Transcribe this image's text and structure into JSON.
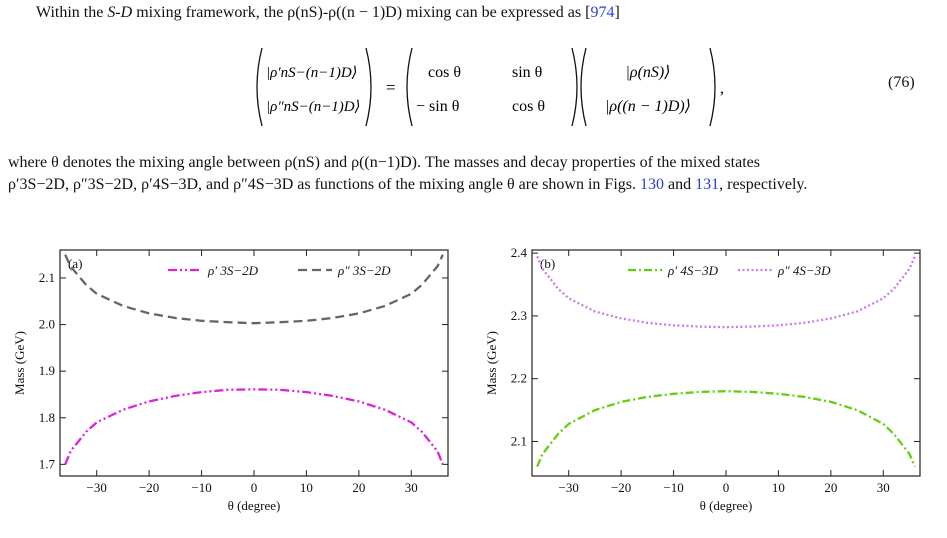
{
  "text": {
    "p1_prefix": "Within the ",
    "p1_sd": "S-D",
    "p1_mid": " mixing framework, the ρ(nS)-ρ((n − 1)D) mixing can be expressed as [",
    "p1_ref": "974",
    "p1_suffix": "]",
    "eq_number": "(76)",
    "p2_a": "where θ denotes the mixing angle between ρ(nS) and ρ((n−1)D). The masses and decay properties of the mixed states",
    "p2_b_pre": "ρ′3S−2D, ρ″3S−2D, ρ′4S−3D, and ρ″4S−3D as functions of the mixing angle θ are shown in Figs. ",
    "p2_ref1": "130",
    "p2_and": " and ",
    "p2_ref2": "131",
    "p2_end": ", respectively."
  },
  "equation": {
    "lhs_top": "|ρ′nS−(n−1)D⟩",
    "lhs_bot": "|ρ″nS−(n−1)D⟩",
    "m11": "cos θ",
    "m12": "sin θ",
    "m21": "− sin θ",
    "m22": "cos θ",
    "rhs_top": "|ρ(nS)⟩",
    "rhs_bot": "|ρ((n − 1)D)⟩"
  },
  "chart_data": [
    {
      "type": "line",
      "panel_label": "(a)",
      "xlabel": "θ (degree)",
      "ylabel": "Mass (GeV)",
      "xlim": [
        -37,
        37
      ],
      "ylim": [
        1.675,
        2.16
      ],
      "xticks": [
        -30,
        -20,
        -10,
        0,
        10,
        20,
        30
      ],
      "yticks": [
        1.7,
        1.8,
        1.9,
        2.0,
        2.1
      ],
      "legend_position": "top",
      "series": [
        {
          "name": "ρ′ 3S−2D",
          "color": "#dd22dd",
          "style": "dash-dot-dot",
          "x": [
            -36,
            -35,
            -32,
            -30,
            -25,
            -20,
            -15,
            -10,
            -5,
            0,
            5,
            10,
            15,
            20,
            25,
            30,
            32,
            35,
            36
          ],
          "y": [
            1.7,
            1.728,
            1.77,
            1.79,
            1.817,
            1.835,
            1.847,
            1.855,
            1.86,
            1.861,
            1.86,
            1.855,
            1.847,
            1.835,
            1.817,
            1.79,
            1.77,
            1.728,
            1.7
          ]
        },
        {
          "name": "ρ″ 3S−2D",
          "color": "#666666",
          "style": "dashed",
          "x": [
            -36,
            -35,
            -32,
            -30,
            -25,
            -20,
            -15,
            -10,
            -5,
            0,
            5,
            10,
            15,
            20,
            25,
            30,
            32,
            35,
            36
          ],
          "y": [
            2.15,
            2.125,
            2.085,
            2.066,
            2.04,
            2.024,
            2.014,
            2.008,
            2.005,
            2.003,
            2.005,
            2.008,
            2.014,
            2.024,
            2.04,
            2.066,
            2.085,
            2.125,
            2.15
          ]
        }
      ]
    },
    {
      "type": "line",
      "panel_label": "(b)",
      "xlabel": "θ (degree)",
      "ylabel": "Mass (GeV)",
      "xlim": [
        -37,
        37
      ],
      "ylim": [
        2.045,
        2.405
      ],
      "xticks": [
        -30,
        -20,
        -10,
        0,
        10,
        20,
        30
      ],
      "yticks": [
        2.1,
        2.2,
        2.3,
        2.4
      ],
      "legend_position": "top",
      "series": [
        {
          "name": "ρ′ 4S−3D",
          "color": "#66cc11",
          "style": "dash-dot",
          "x": [
            -36,
            -35,
            -32,
            -30,
            -25,
            -20,
            -15,
            -10,
            -5,
            0,
            5,
            10,
            15,
            20,
            25,
            30,
            32,
            35,
            36
          ],
          "y": [
            2.06,
            2.08,
            2.112,
            2.128,
            2.15,
            2.163,
            2.171,
            2.176,
            2.179,
            2.18,
            2.179,
            2.176,
            2.171,
            2.163,
            2.15,
            2.128,
            2.112,
            2.08,
            2.06
          ]
        },
        {
          "name": "ρ″ 4S−3D",
          "color": "#cc77ee",
          "style": "dotted",
          "x": [
            -36,
            -35,
            -32,
            -30,
            -25,
            -20,
            -15,
            -10,
            -5,
            0,
            5,
            10,
            15,
            20,
            25,
            30,
            32,
            35,
            36
          ],
          "y": [
            2.395,
            2.375,
            2.343,
            2.328,
            2.307,
            2.296,
            2.289,
            2.285,
            2.283,
            2.282,
            2.283,
            2.285,
            2.289,
            2.296,
            2.307,
            2.328,
            2.343,
            2.375,
            2.395
          ]
        }
      ]
    }
  ]
}
